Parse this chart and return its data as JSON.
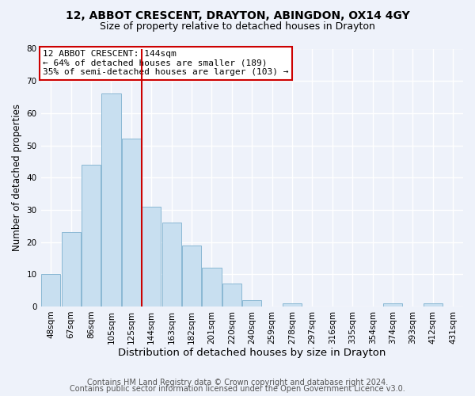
{
  "title1": "12, ABBOT CRESCENT, DRAYTON, ABINGDON, OX14 4GY",
  "title2": "Size of property relative to detached houses in Drayton",
  "xlabel": "Distribution of detached houses by size in Drayton",
  "ylabel": "Number of detached properties",
  "bin_labels": [
    "48sqm",
    "67sqm",
    "86sqm",
    "105sqm",
    "125sqm",
    "144sqm",
    "163sqm",
    "182sqm",
    "201sqm",
    "220sqm",
    "240sqm",
    "259sqm",
    "278sqm",
    "297sqm",
    "316sqm",
    "335sqm",
    "354sqm",
    "374sqm",
    "393sqm",
    "412sqm",
    "431sqm"
  ],
  "bar_values": [
    10,
    23,
    44,
    66,
    52,
    31,
    26,
    19,
    12,
    7,
    2,
    0,
    1,
    0,
    0,
    0,
    0,
    1,
    0,
    1,
    0
  ],
  "bar_color": "#c8dff0",
  "bar_edge_color": "#8ab8d4",
  "highlight_line_color": "#cc0000",
  "vline_after_index": 4,
  "annotation_title": "12 ABBOT CRESCENT: 144sqm",
  "annotation_line1": "← 64% of detached houses are smaller (189)",
  "annotation_line2": "35% of semi-detached houses are larger (103) →",
  "annotation_box_color": "#ffffff",
  "annotation_box_edge": "#cc0000",
  "ylim": [
    0,
    80
  ],
  "yticks": [
    0,
    10,
    20,
    30,
    40,
    50,
    60,
    70,
    80
  ],
  "footer1": "Contains HM Land Registry data © Crown copyright and database right 2024.",
  "footer2": "Contains public sector information licensed under the Open Government Licence v3.0.",
  "background_color": "#eef2fa",
  "grid_color": "#ffffff",
  "title1_fontsize": 10,
  "title2_fontsize": 9,
  "xlabel_fontsize": 9.5,
  "ylabel_fontsize": 8.5,
  "footer_fontsize": 7,
  "tick_fontsize": 7.5,
  "annot_fontsize": 8
}
